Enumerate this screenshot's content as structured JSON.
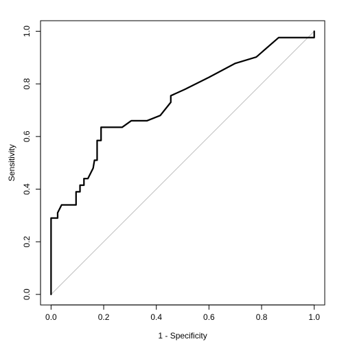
{
  "chart_data": {
    "type": "line",
    "title": "",
    "xlabel": "1 - Specificity",
    "ylabel": "Sensitivity",
    "xlim": [
      0,
      1
    ],
    "ylim": [
      0,
      1
    ],
    "x_ticks": [
      "0.0",
      "0.2",
      "0.4",
      "0.6",
      "0.8",
      "1.0"
    ],
    "y_ticks": [
      "0.0",
      "0.2",
      "0.4",
      "0.6",
      "0.8",
      "1.0"
    ],
    "grid": false,
    "legend": "none",
    "series": [
      {
        "x": [
          0.0,
          0.0,
          0.025,
          0.025,
          0.04,
          0.095,
          0.095,
          0.11,
          0.11,
          0.125,
          0.125,
          0.14,
          0.16,
          0.165,
          0.175,
          0.175,
          0.19,
          0.19,
          0.27,
          0.305,
          0.365,
          0.415,
          0.455,
          0.455,
          0.51,
          0.6,
          0.7,
          0.78,
          0.865,
          0.945,
          1.0,
          1.0
        ],
        "y": [
          0.0,
          0.29,
          0.29,
          0.31,
          0.34,
          0.34,
          0.39,
          0.39,
          0.415,
          0.415,
          0.44,
          0.44,
          0.48,
          0.51,
          0.51,
          0.585,
          0.585,
          0.635,
          0.635,
          0.66,
          0.66,
          0.68,
          0.73,
          0.755,
          0.78,
          0.825,
          0.878,
          0.902,
          0.976,
          0.976,
          0.976,
          1.0
        ]
      }
    ],
    "reference_line": {
      "x": [
        0,
        1
      ],
      "y": [
        0,
        1
      ]
    },
    "colors": {
      "curve": "#000000",
      "reference": "#bebebe",
      "axis": "#000000",
      "background": "#ffffff"
    }
  }
}
